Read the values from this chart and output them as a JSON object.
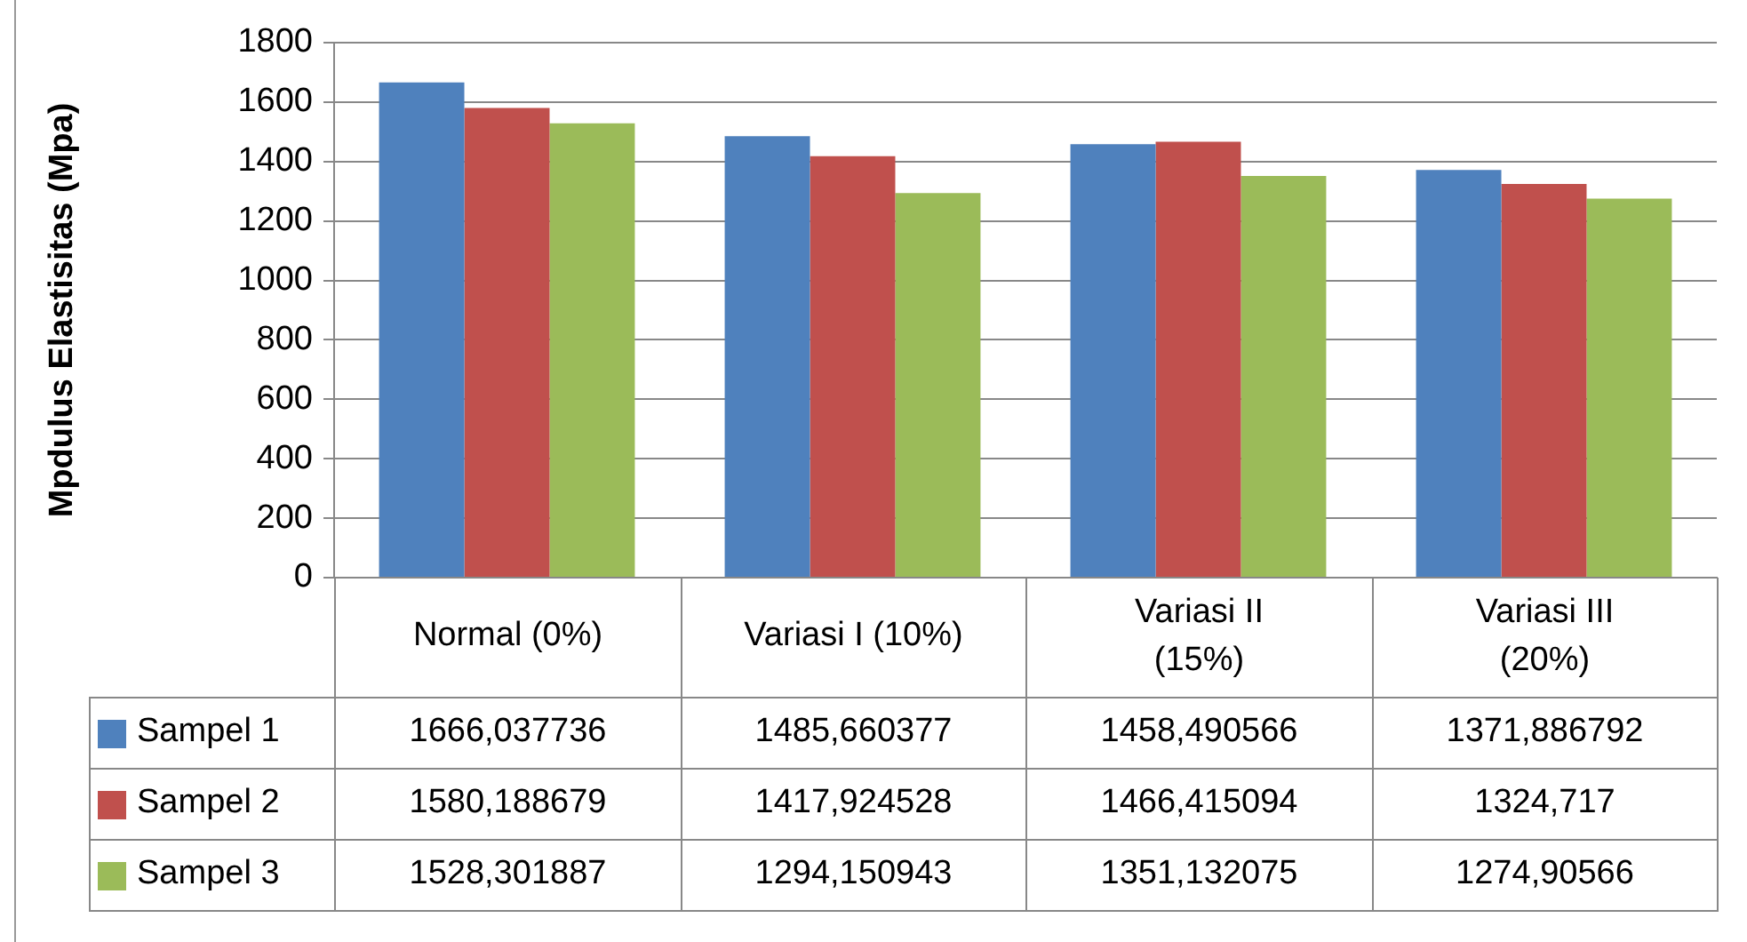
{
  "chart_data": {
    "type": "bar",
    "ylabel": "Mpdulus Elastisitas (Mpa)",
    "categories": [
      "Normal (0%)",
      "Variasi I (10%)",
      "Variasi II (15%)",
      "Variasi III (20%)"
    ],
    "series": [
      {
        "name": "Sampel 1",
        "color": "#4f81bd",
        "values": [
          1666.037736,
          1485.660377,
          1458.490566,
          1371.886792
        ],
        "value_labels": [
          "1666,037736",
          "1485,660377",
          "1458,490566",
          "1371,886792"
        ]
      },
      {
        "name": "Sampel 2",
        "color": "#c0504d",
        "values": [
          1580.188679,
          1417.924528,
          1466.415094,
          1324.717
        ],
        "value_labels": [
          "1580,188679",
          "1417,924528",
          "1466,415094",
          "1324,717"
        ]
      },
      {
        "name": "Sampel 3",
        "color": "#9bbb59",
        "values": [
          1528.301887,
          1294.150943,
          1351.132075,
          1274.90566
        ],
        "value_labels": [
          "1528,301887",
          "1294,150943",
          "1351,132075",
          "1274,90566"
        ]
      }
    ],
    "ylim": [
      0,
      1800
    ],
    "yticks": [
      0,
      200,
      400,
      600,
      800,
      1000,
      1200,
      1400,
      1600,
      1800
    ],
    "grid": "y",
    "legend": "bottom left"
  }
}
